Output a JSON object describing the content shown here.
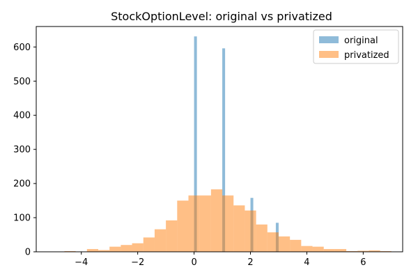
{
  "chart_data": {
    "type": "histogram",
    "title": "StockOptionLevel: original vs privatized",
    "xlabel": "",
    "ylabel": "",
    "xlim": [
      -5.6,
      7.4
    ],
    "ylim": [
      0,
      660
    ],
    "xticks": [
      -4,
      -2,
      0,
      2,
      4,
      6
    ],
    "yticks": [
      0,
      100,
      200,
      300,
      400,
      500,
      600
    ],
    "grid": false,
    "legend_position": "top-right",
    "series": [
      {
        "name": "original",
        "color": "#1f77b4",
        "opacity": 0.5,
        "bins": [
          {
            "x0": 0.0,
            "x1": 0.1,
            "value": 631
          },
          {
            "x0": 1.0,
            "x1": 1.1,
            "value": 596
          },
          {
            "x0": 2.0,
            "x1": 2.1,
            "value": 158
          },
          {
            "x0": 2.9,
            "x1": 3.0,
            "value": 85
          }
        ]
      },
      {
        "name": "privatized",
        "color": "#ff7f0e",
        "opacity": 0.5,
        "bins": [
          {
            "x0": -4.6,
            "x1": -4.2,
            "value": 2
          },
          {
            "x0": -4.2,
            "x1": -3.8,
            "value": 1
          },
          {
            "x0": -3.8,
            "x1": -3.4,
            "value": 8
          },
          {
            "x0": -3.4,
            "x1": -3.0,
            "value": 5
          },
          {
            "x0": -3.0,
            "x1": -2.6,
            "value": 15
          },
          {
            "x0": -2.6,
            "x1": -2.2,
            "value": 20
          },
          {
            "x0": -2.2,
            "x1": -1.8,
            "value": 25
          },
          {
            "x0": -1.8,
            "x1": -1.4,
            "value": 42
          },
          {
            "x0": -1.4,
            "x1": -1.0,
            "value": 66
          },
          {
            "x0": -1.0,
            "x1": -0.6,
            "value": 92
          },
          {
            "x0": -0.6,
            "x1": -0.2,
            "value": 150
          },
          {
            "x0": -0.2,
            "x1": 0.2,
            "value": 165
          },
          {
            "x0": 0.2,
            "x1": 0.6,
            "value": 165
          },
          {
            "x0": 0.6,
            "x1": 1.0,
            "value": 183
          },
          {
            "x0": 1.0,
            "x1": 1.4,
            "value": 165
          },
          {
            "x0": 1.4,
            "x1": 1.8,
            "value": 136
          },
          {
            "x0": 1.8,
            "x1": 2.2,
            "value": 121
          },
          {
            "x0": 2.2,
            "x1": 2.6,
            "value": 80
          },
          {
            "x0": 2.6,
            "x1": 3.0,
            "value": 57
          },
          {
            "x0": 3.0,
            "x1": 3.4,
            "value": 45
          },
          {
            "x0": 3.4,
            "x1": 3.8,
            "value": 35
          },
          {
            "x0": 3.8,
            "x1": 4.2,
            "value": 17
          },
          {
            "x0": 4.2,
            "x1": 4.6,
            "value": 15
          },
          {
            "x0": 4.6,
            "x1": 5.0,
            "value": 8
          },
          {
            "x0": 5.0,
            "x1": 5.4,
            "value": 8
          },
          {
            "x0": 5.4,
            "x1": 5.8,
            "value": 2
          },
          {
            "x0": 5.8,
            "x1": 6.2,
            "value": 3
          },
          {
            "x0": 6.2,
            "x1": 6.6,
            "value": 4
          },
          {
            "x0": 6.6,
            "x1": 7.0,
            "value": 2
          }
        ]
      }
    ]
  }
}
